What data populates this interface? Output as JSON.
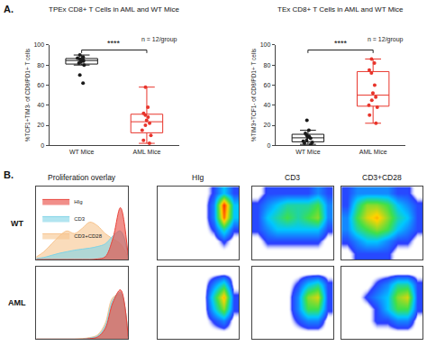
{
  "chart_data": [
    {
      "type": "box",
      "panel": "A.",
      "title": "TPEx CD8+ T Cells in AML and WT Mice",
      "y_label": "%TCF1+TIM3- of CD8/PD1+ T cells",
      "categories": [
        "WT Mice",
        "AML Mice"
      ],
      "groups": [
        {
          "category": "WT Mice",
          "color": "#1a1a1a",
          "values": [
            90,
            88,
            87,
            86,
            85,
            85,
            84,
            83,
            82,
            80,
            70,
            62
          ]
        },
        {
          "category": "AML Mice",
          "color": "#e8342b",
          "values": [
            58,
            38,
            32,
            30,
            28,
            25,
            22,
            20,
            15,
            10,
            5,
            2
          ]
        }
      ],
      "ylim": [
        0,
        100
      ],
      "yticks": [
        0,
        20,
        40,
        60,
        80,
        100
      ],
      "grid": false,
      "significance": "****",
      "annotation": "n = 12/group"
    },
    {
      "type": "box",
      "title": "TEx CD8+ T Cells in AML and WT Mice",
      "y_label": "%TIM3+TCF1- of CD8/PD1+ T cells",
      "categories": [
        "WT Mice",
        "AML Mice"
      ],
      "groups": [
        {
          "category": "WT Mice",
          "color": "#1a1a1a",
          "values": [
            25,
            15,
            12,
            10,
            9,
            8,
            7,
            5,
            4,
            3,
            2,
            1
          ]
        },
        {
          "category": "AML Mice",
          "color": "#e8342b",
          "values": [
            86,
            82,
            75,
            72,
            60,
            52,
            48,
            45,
            40,
            38,
            30,
            22
          ]
        }
      ],
      "ylim": [
        0,
        100
      ],
      "yticks": [
        0,
        20,
        40,
        60,
        80,
        100
      ],
      "grid": false,
      "significance": "****",
      "annotation": "n = 12/group"
    },
    {
      "type": "area",
      "panel": "B.",
      "title": "Proliferation overlay",
      "row": "WT",
      "x": [
        0,
        1,
        2,
        3,
        4,
        5,
        6,
        7,
        8,
        9,
        10,
        11,
        12
      ],
      "series": [
        {
          "name": "HIg",
          "color": "#e8453c",
          "values": [
            0,
            0,
            0,
            0,
            0,
            0,
            0,
            0,
            1,
            5,
            40,
            100,
            8
          ]
        },
        {
          "name": "CD3",
          "color": "#7fd3e6",
          "values": [
            2,
            4,
            8,
            12,
            15,
            18,
            20,
            22,
            25,
            30,
            45,
            55,
            6
          ]
        },
        {
          "name": "CD3+CD28",
          "color": "#f7c48e",
          "values": [
            5,
            15,
            30,
            45,
            55,
            50,
            60,
            72,
            65,
            50,
            40,
            30,
            3
          ]
        }
      ],
      "xlim": [
        0,
        12
      ],
      "ylim": [
        0,
        140
      ],
      "tick_labels": false,
      "grid": false,
      "legend": "upper left"
    },
    {
      "type": "area",
      "row": "AML",
      "x": [
        0,
        1,
        2,
        3,
        4,
        5,
        6,
        7,
        8,
        9,
        10,
        11,
        12
      ],
      "series": [
        {
          "name": "HIg",
          "color": "#e8453c",
          "values": [
            0,
            0,
            0,
            0,
            0,
            0,
            0,
            1,
            4,
            20,
            70,
            95,
            5
          ]
        },
        {
          "name": "CD3",
          "color": "#7fd3e6",
          "values": [
            0,
            0,
            0,
            0,
            0,
            0,
            0,
            2,
            6,
            25,
            75,
            90,
            4
          ]
        },
        {
          "name": "CD3+CD28",
          "color": "#f7c48e",
          "values": [
            0,
            0,
            0,
            0,
            0,
            0,
            1,
            3,
            8,
            30,
            80,
            85,
            4
          ]
        }
      ],
      "xlim": [
        0,
        12
      ],
      "ylim": [
        0,
        140
      ],
      "tick_labels": false,
      "grid": false
    },
    {
      "type": "heatmap",
      "title": "HIg",
      "x": [
        0,
        1,
        2,
        3,
        4,
        5,
        6,
        7
      ],
      "y": [
        0,
        1,
        2,
        3,
        4,
        5
      ],
      "z": [
        [
          0,
          0,
          0,
          0,
          0,
          0,
          0,
          0
        ],
        [
          0,
          0,
          0,
          0,
          0,
          0,
          1,
          0
        ],
        [
          0,
          0,
          0,
          0,
          0,
          1,
          4,
          1
        ],
        [
          0,
          0,
          0,
          0,
          0,
          2,
          9,
          3
        ],
        [
          0,
          0,
          0,
          0,
          0,
          2,
          10,
          3
        ],
        [
          0,
          0,
          0,
          0,
          0,
          1,
          3,
          1
        ]
      ],
      "zlim": [
        0,
        10
      ],
      "xlim": [
        -0.5,
        7.5
      ],
      "ylim": [
        -0.5,
        5.5
      ],
      "tick_labels": false,
      "grid": false
    },
    {
      "type": "heatmap",
      "title": "CD3",
      "x": [
        0,
        1,
        2,
        3,
        4,
        5,
        6,
        7
      ],
      "y": [
        0,
        1,
        2,
        3,
        4,
        5
      ],
      "z": [
        [
          0,
          0,
          0,
          0,
          0,
          0,
          0,
          0
        ],
        [
          0,
          1,
          1,
          1,
          1,
          1,
          1,
          0
        ],
        [
          1,
          2,
          3,
          3,
          3,
          3,
          3,
          1
        ],
        [
          1,
          3,
          4,
          5,
          4,
          5,
          6,
          2
        ],
        [
          1,
          2,
          3,
          4,
          4,
          4,
          5,
          2
        ],
        [
          0,
          1,
          1,
          1,
          1,
          1,
          2,
          1
        ]
      ],
      "zlim": [
        0,
        10
      ],
      "xlim": [
        -0.5,
        7.5
      ],
      "ylim": [
        -0.5,
        5.5
      ],
      "tick_labels": false,
      "grid": false
    },
    {
      "type": "heatmap",
      "title": "CD3+CD28",
      "x": [
        0,
        1,
        2,
        3,
        4,
        5,
        6,
        7
      ],
      "y": [
        0,
        1,
        2,
        3,
        4,
        5
      ],
      "z": [
        [
          0,
          1,
          1,
          1,
          1,
          0,
          0,
          0
        ],
        [
          1,
          2,
          3,
          3,
          2,
          1,
          1,
          0
        ],
        [
          2,
          4,
          5,
          6,
          5,
          3,
          2,
          1
        ],
        [
          2,
          5,
          7,
          8,
          6,
          4,
          3,
          1
        ],
        [
          1,
          4,
          6,
          6,
          5,
          3,
          2,
          1
        ],
        [
          1,
          2,
          2,
          2,
          2,
          1,
          1,
          0
        ]
      ],
      "zlim": [
        0,
        10
      ],
      "xlim": [
        -0.5,
        7.5
      ],
      "ylim": [
        -0.5,
        5.5
      ],
      "tick_labels": false,
      "grid": false
    },
    {
      "type": "heatmap",
      "x": [
        0,
        1,
        2,
        3,
        4,
        5,
        6,
        7
      ],
      "y": [
        0,
        1,
        2,
        3,
        4,
        5
      ],
      "z": [
        [
          0,
          0,
          0,
          0,
          0,
          0,
          0,
          0
        ],
        [
          0,
          0,
          0,
          0,
          0,
          1,
          2,
          0
        ],
        [
          0,
          0,
          0,
          0,
          0,
          3,
          6,
          1
        ],
        [
          0,
          0,
          0,
          0,
          0,
          4,
          8,
          1
        ],
        [
          0,
          0,
          0,
          0,
          0,
          2,
          4,
          0
        ],
        [
          0,
          0,
          0,
          0,
          0,
          0,
          0,
          0
        ]
      ],
      "zlim": [
        0,
        10
      ],
      "xlim": [
        -0.5,
        7.5
      ],
      "ylim": [
        -0.5,
        5.5
      ],
      "tick_labels": false,
      "grid": false
    },
    {
      "type": "heatmap",
      "x": [
        0,
        1,
        2,
        3,
        4,
        5,
        6,
        7
      ],
      "y": [
        0,
        1,
        2,
        3,
        4,
        5
      ],
      "z": [
        [
          0,
          0,
          0,
          0,
          0,
          0,
          0,
          0
        ],
        [
          0,
          0,
          0,
          0,
          1,
          2,
          2,
          0
        ],
        [
          0,
          0,
          0,
          0,
          2,
          5,
          5,
          1
        ],
        [
          0,
          0,
          0,
          0,
          2,
          6,
          7,
          1
        ],
        [
          0,
          0,
          0,
          0,
          1,
          3,
          4,
          1
        ],
        [
          0,
          0,
          0,
          0,
          0,
          0,
          0,
          0
        ]
      ],
      "zlim": [
        0,
        10
      ],
      "xlim": [
        -0.5,
        7.5
      ],
      "ylim": [
        -0.5,
        5.5
      ],
      "tick_labels": false,
      "grid": false
    },
    {
      "type": "heatmap",
      "x": [
        0,
        1,
        2,
        3,
        4,
        5,
        6,
        7
      ],
      "y": [
        0,
        1,
        2,
        3,
        4,
        5
      ],
      "z": [
        [
          0,
          0,
          0,
          0,
          0,
          0,
          0,
          0
        ],
        [
          0,
          0,
          0,
          1,
          1,
          2,
          2,
          0
        ],
        [
          0,
          0,
          0,
          1,
          3,
          5,
          5,
          1
        ],
        [
          0,
          0,
          1,
          2,
          3,
          6,
          7,
          1
        ],
        [
          0,
          0,
          0,
          1,
          2,
          4,
          4,
          1
        ],
        [
          0,
          0,
          0,
          0,
          0,
          0,
          0,
          0
        ]
      ],
      "zlim": [
        0,
        10
      ],
      "xlim": [
        -0.5,
        7.5
      ],
      "ylim": [
        -0.5,
        5.5
      ],
      "tick_labels": false,
      "grid": false
    }
  ]
}
